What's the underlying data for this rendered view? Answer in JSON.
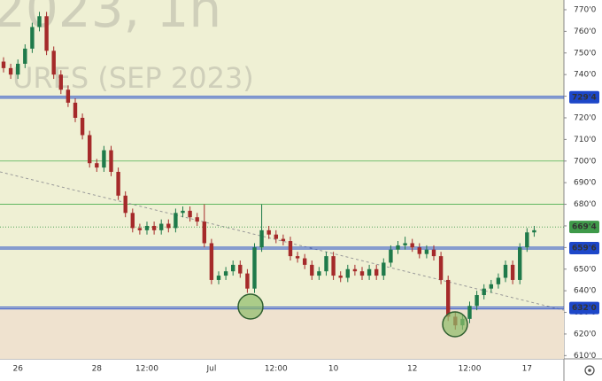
{
  "chart_data": {
    "type": "candlestick",
    "watermark": [
      "2023, 1h",
      "URES (SEP 2023)"
    ],
    "categories": [
      null,
      null,
      "26",
      null,
      null,
      null,
      null,
      null,
      null,
      null,
      null,
      null,
      null,
      "28",
      null,
      null,
      null,
      null,
      null,
      null,
      "12:00",
      null,
      null,
      null,
      null,
      null,
      null,
      null,
      null,
      "Jul",
      null,
      null,
      null,
      null,
      null,
      null,
      null,
      null,
      "12:00",
      null,
      null,
      null,
      null,
      null,
      null,
      null,
      "10",
      null,
      null,
      null,
      null,
      null,
      null,
      null,
      null,
      null,
      null,
      "12",
      null,
      null,
      null,
      null,
      null,
      null,
      null,
      "12:00",
      null,
      null,
      null,
      null,
      null,
      null,
      null,
      "17",
      null
    ],
    "open": [
      746,
      743,
      740,
      745,
      752,
      762,
      767,
      751,
      740,
      733,
      727,
      720,
      712,
      699,
      697,
      705,
      695,
      684,
      676,
      669,
      668,
      670,
      668,
      671,
      669,
      676,
      677,
      674,
      672,
      662,
      645,
      647,
      649,
      652,
      648,
      641,
      660,
      668,
      666,
      664,
      663,
      656,
      655,
      652,
      647,
      649,
      656,
      647,
      646,
      650,
      649,
      647,
      650,
      647,
      653,
      659,
      661,
      662,
      660,
      657,
      659,
      656,
      645,
      628,
      624,
      627,
      633,
      638,
      641,
      643,
      646,
      652,
      645,
      660,
      667
    ],
    "high": [
      748,
      745,
      747,
      754,
      764,
      769,
      769,
      753,
      742,
      735,
      729,
      722,
      714,
      701,
      707,
      707,
      697,
      686,
      678,
      671,
      672,
      672,
      673,
      673,
      678,
      679,
      679,
      676,
      680,
      664,
      649,
      651,
      654,
      654,
      650,
      662,
      680,
      670,
      668,
      666,
      665,
      658,
      657,
      654,
      651,
      658,
      658,
      649,
      652,
      652,
      651,
      652,
      652,
      655,
      661,
      663,
      665,
      664,
      662,
      661,
      661,
      658,
      647,
      630,
      629,
      635,
      640,
      643,
      645,
      648,
      654,
      654,
      662,
      669,
      670
    ],
    "low": [
      741,
      738,
      738,
      743,
      750,
      760,
      749,
      738,
      731,
      725,
      718,
      710,
      697,
      695,
      695,
      693,
      682,
      674,
      667,
      666,
      666,
      666,
      666,
      667,
      667,
      674,
      672,
      670,
      660,
      643,
      643,
      645,
      647,
      646,
      639,
      639,
      658,
      664,
      662,
      661,
      654,
      653,
      650,
      645,
      645,
      647,
      645,
      644,
      644,
      647,
      645,
      645,
      645,
      645,
      651,
      657,
      659,
      658,
      655,
      655,
      654,
      643,
      626,
      622,
      622,
      625,
      631,
      636,
      639,
      641,
      644,
      643,
      643,
      658,
      665
    ],
    "close": [
      743,
      740,
      745,
      752,
      762,
      767,
      751,
      740,
      733,
      727,
      720,
      712,
      699,
      697,
      705,
      695,
      684,
      676,
      669,
      668,
      670,
      668,
      671,
      669,
      676,
      677,
      674,
      672,
      662,
      645,
      647,
      649,
      652,
      648,
      641,
      660,
      668,
      666,
      664,
      663,
      656,
      655,
      652,
      647,
      649,
      656,
      647,
      646,
      650,
      649,
      647,
      650,
      647,
      653,
      659,
      661,
      662,
      660,
      657,
      659,
      656,
      645,
      628,
      624,
      627,
      633,
      638,
      641,
      643,
      646,
      652,
      645,
      660,
      667,
      668
    ],
    "up_color": "#1f7a4a",
    "down_color": "#a52a2a",
    "ylim": [
      608.5,
      774.5
    ],
    "yticks": [
      {
        "value": 610,
        "label": "610'0"
      },
      {
        "value": 620,
        "label": "620'0"
      },
      {
        "value": 630,
        "label": "630'0"
      },
      {
        "value": 640,
        "label": "640'0"
      },
      {
        "value": 650,
        "label": "650'0"
      },
      {
        "value": 660,
        "label": "660'0"
      },
      {
        "value": 670,
        "label": "670'0"
      },
      {
        "value": 680,
        "label": "680'0"
      },
      {
        "value": 690,
        "label": "690'0"
      },
      {
        "value": 700,
        "label": "700'0"
      },
      {
        "value": 710,
        "label": "710'0"
      },
      {
        "value": 720,
        "label": "720'0"
      },
      {
        "value": 730,
        "label": "730'0"
      },
      {
        "value": 740,
        "label": "740'0"
      },
      {
        "value": 750,
        "label": "750'0"
      },
      {
        "value": 760,
        "label": "760'0"
      },
      {
        "value": 770,
        "label": "770'0"
      }
    ],
    "levels": [
      {
        "value": 729.5,
        "label": "729'4",
        "color": "#1d47c9"
      },
      {
        "value": 669.5,
        "label": "669'4",
        "color": "#3f9a4a"
      },
      {
        "value": 659.75,
        "label": "659'6",
        "color": "#1d47c9"
      },
      {
        "value": 632,
        "label": "632'0",
        "color": "#1d47c9"
      }
    ],
    "guide_lines": [
      700,
      680
    ],
    "trend_line": [
      695,
      631
    ]
  }
}
